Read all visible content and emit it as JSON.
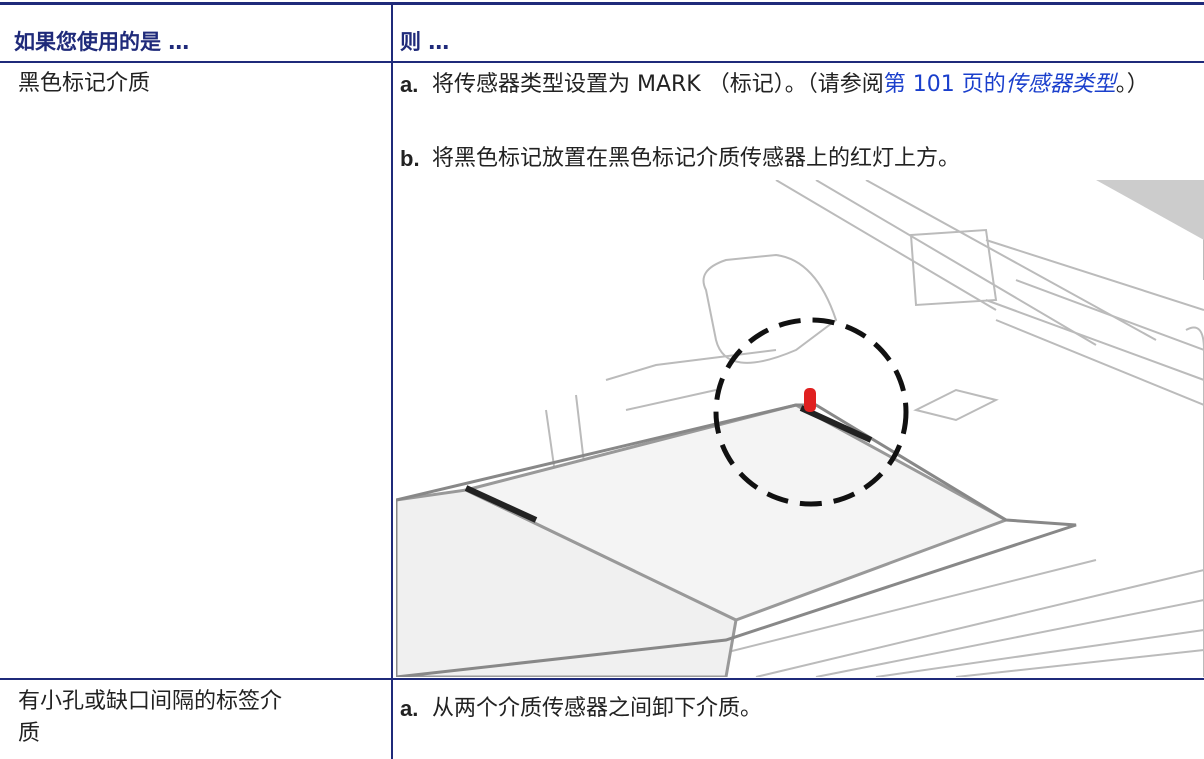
{
  "table": {
    "headers": [
      "如果您使用的是 …",
      "则 …"
    ],
    "rows": [
      {
        "media": "黑色标记介质",
        "steps": [
          {
            "label": "a.",
            "text": "将传感器类型设置为 MARK （标记）。（请参阅",
            "link_page": "第 101 页的",
            "link_title": "传感器类型",
            "tail": "。）"
          },
          {
            "label": "b.",
            "text": "将黑色标记放置在黑色标记介质传感器上的红灯上方。"
          }
        ]
      },
      {
        "media": "有小孔或缺口间隔的标签介质",
        "steps": [
          {
            "label": "a.",
            "text": "从两个介质传感器之间卸下介质。"
          }
        ]
      }
    ]
  }
}
